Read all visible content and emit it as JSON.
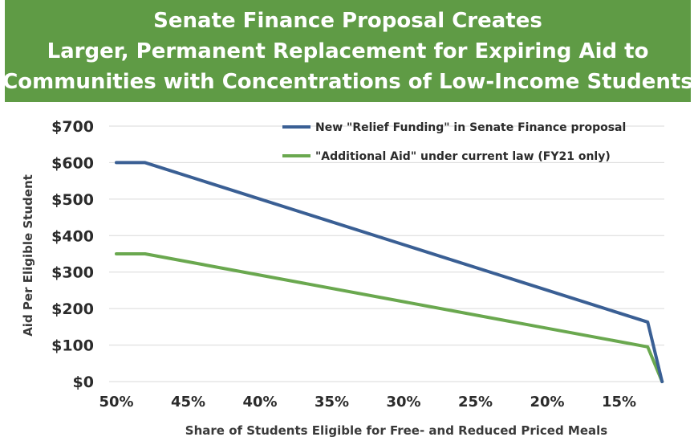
{
  "chart_data": {
    "type": "line",
    "title_lines": [
      "Senate Finance Proposal Creates",
      "Larger, Permanent Replacement for Expiring Aid to",
      "Communities with Concentrations of Low-Income Students"
    ],
    "xlabel": "Share of Students Eligible for Free- and Reduced Priced Meals",
    "ylabel": "Aid Per Eligible Student",
    "x_reversed": true,
    "xlim": [
      50,
      11
    ],
    "ylim": [
      0,
      700
    ],
    "x_ticks": [
      50,
      45,
      40,
      35,
      30,
      25,
      20,
      15
    ],
    "x_tick_labels": [
      "50%",
      "45%",
      "40%",
      "35%",
      "30%",
      "25%",
      "20%",
      "15%"
    ],
    "y_ticks": [
      0,
      100,
      200,
      300,
      400,
      500,
      600,
      700
    ],
    "y_tick_labels": [
      "$0",
      "$100",
      "$200",
      "$300",
      "$400",
      "$500",
      "$600",
      "$700"
    ],
    "grid": "horizontal",
    "legend_position": "top-right",
    "series": [
      {
        "name": "New \"Relief Funding\" in Senate Finance proposal",
        "color": "#3a5f94",
        "x": [
          50,
          48,
          13,
          12
        ],
        "y": [
          600,
          600,
          163,
          0
        ]
      },
      {
        "name": "\"Additional Aid\" under current law (FY21 only)",
        "color": "#6aa84f",
        "x": [
          50,
          48,
          13,
          12
        ],
        "y": [
          350,
          350,
          95,
          0
        ]
      }
    ]
  }
}
